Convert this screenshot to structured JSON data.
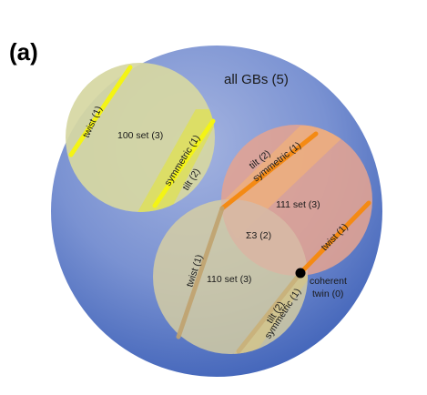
{
  "panel_label": "(a)",
  "labels": {
    "all_gbs": "all GBs (5)",
    "set_100": "100 set (3)",
    "set_111": "111 set (3)",
    "set_110": "110 set (3)",
    "sigma3": "Σ3 (2)",
    "twist_100": "twist (1)",
    "symmetric_100": "symmetric (1)",
    "tilt_100": "tilt (2)",
    "tilt_111": "tilt (2)",
    "symmetric_111": "symmetric (1)",
    "twist_111": "twist (1)",
    "twist_110": "twist (1)",
    "tilt_110": "tilt (2)",
    "symmetric_110": "symmetric (1)",
    "coherent_twin_line1": "coherent",
    "coherent_twin_line2": "twin (0)"
  },
  "colors": {
    "outer_circle": "#6a84c6",
    "set_100_fill": "#d4d6a0",
    "set_111_fill": "#e1a494",
    "set_110_fill": "#cfc79e",
    "yellow_line": "#f4f414",
    "orange_line": "#f48a14",
    "tan_line": "#c8a870",
    "twin_dot": "#000000"
  }
}
